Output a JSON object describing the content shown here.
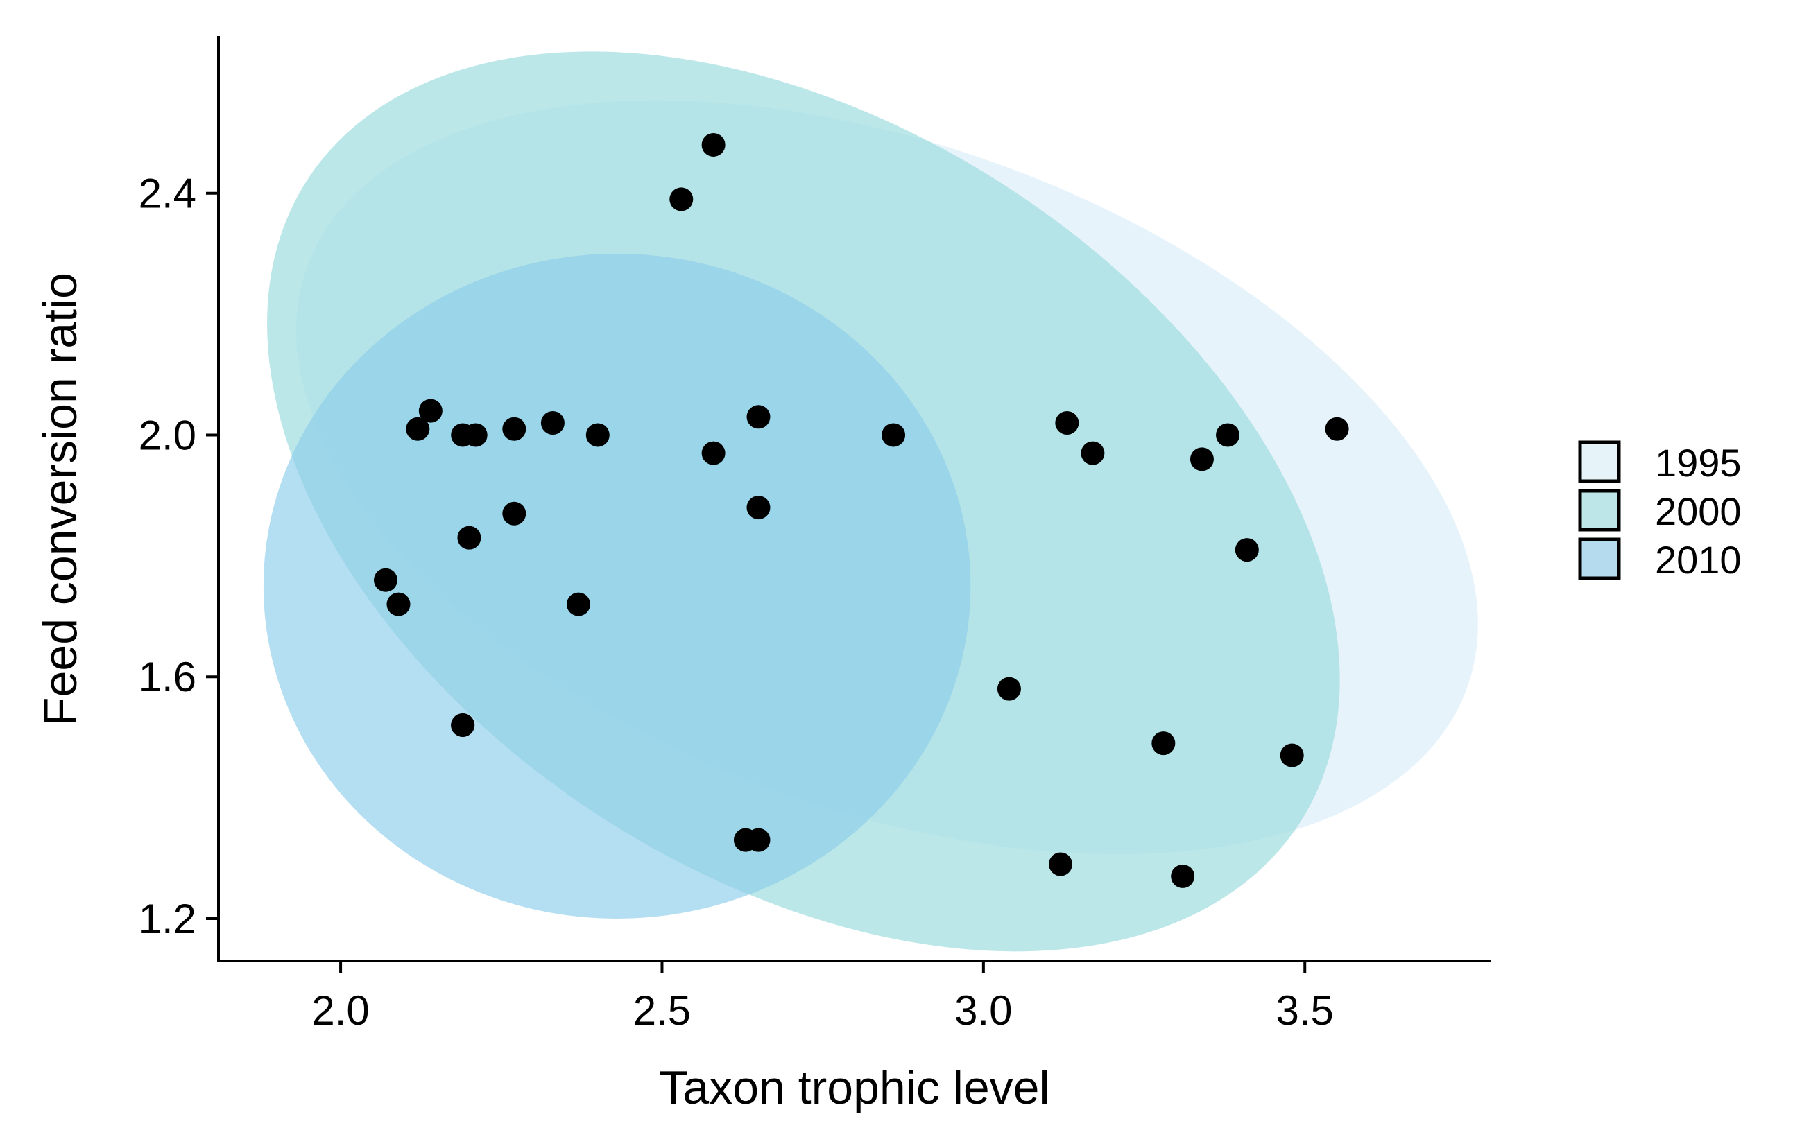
{
  "chart_data": {
    "type": "scatter",
    "xlabel": "Taxon trophic level",
    "ylabel": "Feed conversion ratio",
    "xlim": [
      1.81,
      3.79
    ],
    "ylim": [
      1.13,
      2.66
    ],
    "xticks": [
      2.0,
      2.5,
      3.0,
      3.5
    ],
    "xtick_labels": [
      "2.0",
      "2.5",
      "3.0",
      "3.5"
    ],
    "yticks": [
      1.2,
      1.6,
      2.0,
      2.4
    ],
    "ytick_labels": [
      "1.2",
      "1.6",
      "2.0",
      "2.4"
    ],
    "grid": false,
    "legend_position": "right",
    "point_color": "#000000",
    "ellipses": [
      {
        "name": "1995",
        "color": "#ddeef8",
        "opacity": 0.7,
        "cx": 2.85,
        "cy": 1.93,
        "rx": 0.96,
        "ry": 0.55,
        "angle_deg": 20
      },
      {
        "name": "2000",
        "color": "#a0dde0",
        "opacity": 0.7,
        "cx": 2.72,
        "cy": 1.89,
        "rx": 0.92,
        "ry": 0.62,
        "angle_deg": 33
      },
      {
        "name": "2010",
        "color": "#8ccce9",
        "opacity": 0.65,
        "cx": 2.43,
        "cy": 1.75,
        "rx": 0.55,
        "ry": 0.55,
        "angle_deg": 0
      }
    ],
    "x": [
      2.07,
      2.09,
      2.12,
      2.14,
      2.19,
      2.2,
      2.21,
      2.27,
      2.33,
      2.4,
      2.19,
      2.27,
      2.19,
      2.37,
      2.53,
      2.58,
      2.58,
      2.65,
      2.65,
      2.63,
      2.65,
      2.86,
      3.04,
      3.12,
      3.13,
      3.17,
      3.28,
      3.31,
      3.34,
      3.38,
      3.41,
      3.48,
      3.55
    ],
    "y": [
      1.76,
      1.72,
      2.01,
      2.04,
      2.0,
      1.83,
      2.0,
      2.01,
      2.02,
      2.0,
      1.52,
      1.87,
      1.52,
      1.72,
      2.39,
      2.48,
      1.97,
      2.03,
      1.88,
      1.33,
      1.33,
      2.0,
      1.58,
      1.29,
      2.02,
      1.97,
      1.49,
      1.27,
      1.96,
      2.0,
      1.81,
      1.47,
      2.01
    ],
    "legend": [
      {
        "label": "1995",
        "fill": "#e6f3f9"
      },
      {
        "label": "2000",
        "fill": "#bde6e8"
      },
      {
        "label": "2010",
        "fill": "#b4dbee"
      }
    ]
  }
}
